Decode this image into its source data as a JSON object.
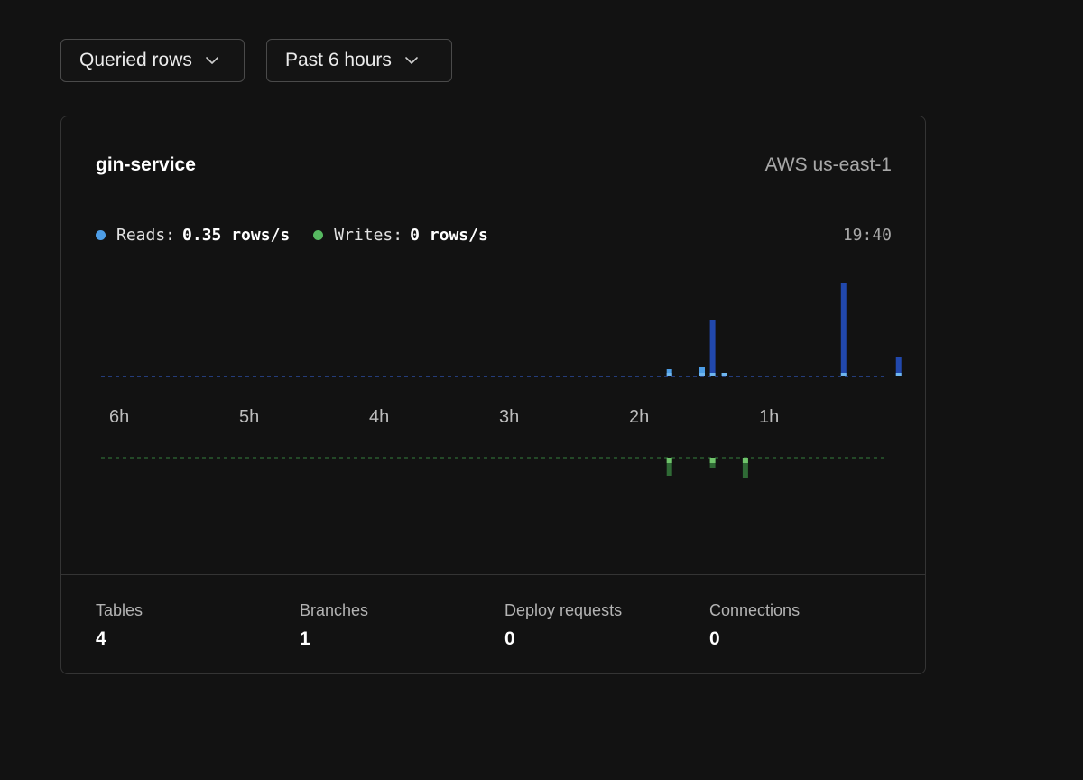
{
  "filters": {
    "metric": "Queried rows",
    "range": "Past 6 hours"
  },
  "database": {
    "name": "gin-service",
    "region": "AWS us-east-1"
  },
  "legend": {
    "reads_label": "Reads:",
    "reads_value": "0.35 rows/s",
    "writes_label": "Writes:",
    "writes_value": "0 rows/s",
    "time": "19:40"
  },
  "colors": {
    "reads": "#4d9de6",
    "reads_dark": "#2148ad",
    "reads_light": "#6fb6ef",
    "writes": "#56b860",
    "writes_dark": "#2f6a35",
    "writes_light": "#6fc46b"
  },
  "chart_data": {
    "type": "bar",
    "x_ticks": [
      "6h",
      "5h",
      "4h",
      "3h",
      "2h",
      "1h"
    ],
    "x_domain_hours_ago": [
      6,
      0
    ],
    "series": [
      {
        "name": "Reads",
        "direction": "up",
        "bars": [
          {
            "hours_ago": 1.8,
            "value": 8
          },
          {
            "hours_ago": 1.55,
            "value": 10
          },
          {
            "hours_ago": 1.47,
            "value": 62
          },
          {
            "hours_ago": 1.38,
            "value": 4
          },
          {
            "hours_ago": 0.47,
            "value": 104
          },
          {
            "hours_ago": 0.05,
            "value": 21
          }
        ]
      },
      {
        "name": "Writes",
        "direction": "down",
        "bars": [
          {
            "hours_ago": 1.8,
            "value": 20
          },
          {
            "hours_ago": 1.47,
            "value": 11
          },
          {
            "hours_ago": 1.22,
            "value": 22
          }
        ]
      }
    ]
  },
  "stats": [
    {
      "label": "Tables",
      "value": "4"
    },
    {
      "label": "Branches",
      "value": "1"
    },
    {
      "label": "Deploy requests",
      "value": "0"
    },
    {
      "label": "Connections",
      "value": "0"
    }
  ]
}
